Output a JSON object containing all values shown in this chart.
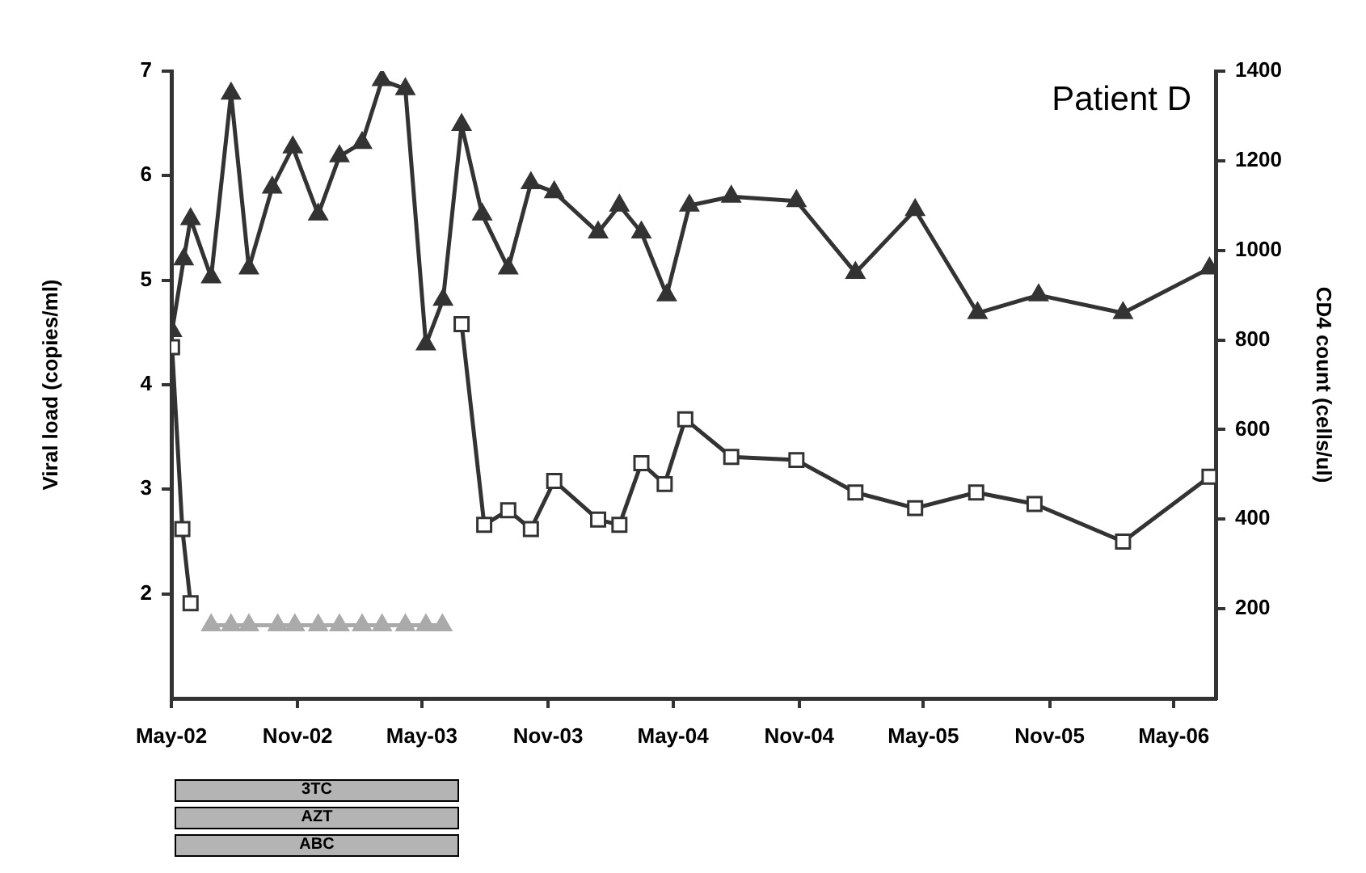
{
  "chart_data": {
    "type": "line",
    "title": "Patient D",
    "ylabel": "Viral load (copies/ml)",
    "y2label": "CD4 count (cells/ul)",
    "xlim": [
      "2002-05-01",
      "2006-07-01"
    ],
    "xticks": [
      {
        "value": "2002-05-01",
        "label": "May-02"
      },
      {
        "value": "2002-11-01",
        "label": "Nov-02"
      },
      {
        "value": "2003-05-01",
        "label": "May-03"
      },
      {
        "value": "2003-11-01",
        "label": "Nov-03"
      },
      {
        "value": "2004-05-01",
        "label": "May-04"
      },
      {
        "value": "2004-11-01",
        "label": "Nov-04"
      },
      {
        "value": "2005-05-01",
        "label": "May-05"
      },
      {
        "value": "2005-11-01",
        "label": "Nov-05"
      },
      {
        "value": "2006-05-01",
        "label": "May-06"
      }
    ],
    "ylim": [
      1,
      7
    ],
    "yticks": [
      2,
      3,
      4,
      5,
      6,
      7
    ],
    "y2lim": [
      0,
      1400
    ],
    "y2ticks": [
      200,
      400,
      600,
      800,
      1000,
      1200,
      1400
    ],
    "grid": false,
    "legend": false,
    "series": [
      {
        "color": "#333333",
        "marker": "triangle",
        "axis": "y2",
        "x": [
          "2002-05-02",
          "2002-05-19",
          "2002-05-29",
          "2002-06-28",
          "2002-07-27",
          "2002-08-22",
          "2002-09-25",
          "2002-10-25",
          "2002-12-01",
          "2003-01-01",
          "2003-02-03",
          "2003-03-04",
          "2003-04-07",
          "2003-05-07",
          "2003-06-01",
          "2003-06-28",
          "2003-07-28",
          "2003-09-04",
          "2003-10-07",
          "2003-11-10",
          "2004-01-13",
          "2004-02-13",
          "2004-03-16",
          "2004-04-22",
          "2004-05-25",
          "2004-07-25",
          "2004-10-28",
          "2005-01-22",
          "2005-04-19",
          "2005-07-19",
          "2005-10-16",
          "2006-02-16",
          "2006-06-22"
        ],
        "values": [
          820,
          980,
          1070,
          940,
          1350,
          960,
          1140,
          1230,
          1080,
          1210,
          1240,
          1380,
          1360,
          790,
          890,
          1280,
          1080,
          960,
          1150,
          1130,
          1040,
          1100,
          1040,
          900,
          1100,
          1120,
          1110,
          950,
          1090,
          860,
          900,
          860,
          960
        ]
      },
      {
        "color": "#333333",
        "marker": "square",
        "x": [
          "2002-05-02",
          "2002-05-17",
          "2002-05-29",
          "2002-06-28",
          "2002-07-27",
          "2002-08-22",
          "2002-10-03",
          "2002-10-28",
          "2002-12-01",
          "2003-01-01",
          "2003-02-03",
          "2003-03-04",
          "2003-04-07",
          "2003-05-07",
          "2003-05-31",
          "2003-06-28",
          "2003-07-31",
          "2003-09-04",
          "2003-10-07",
          "2003-11-10",
          "2004-01-13",
          "2004-02-13",
          "2004-03-16",
          "2004-04-19",
          "2004-05-19",
          "2004-07-25",
          "2004-10-28",
          "2005-01-22",
          "2005-04-19",
          "2005-07-17",
          "2005-10-10",
          "2006-02-16",
          "2006-06-22"
        ],
        "values": [
          4.36,
          2.62,
          1.91,
          null,
          null,
          null,
          null,
          null,
          null,
          null,
          null,
          null,
          null,
          null,
          null,
          4.58,
          2.66,
          2.8,
          2.62,
          3.08,
          2.71,
          2.66,
          3.25,
          3.05,
          3.67,
          3.31,
          3.28,
          2.97,
          2.82,
          2.97,
          2.86,
          2.5,
          3.12
        ]
      },
      {
        "color": "#aaaaaa",
        "marker": "triangle",
        "x": [
          "2002-06-28",
          "2002-07-27",
          "2002-08-22",
          "2002-10-03",
          "2002-10-28",
          "2002-12-01",
          "2003-01-01",
          "2003-02-03",
          "2003-03-04",
          "2003-04-07",
          "2003-05-07",
          "2003-05-31"
        ],
        "values": [
          1.7,
          1.7,
          1.7,
          1.7,
          1.7,
          1.7,
          1.7,
          1.7,
          1.7,
          1.7,
          1.7,
          1.7
        ]
      }
    ],
    "annotations": [
      "3TC",
      "AZT",
      "ABC"
    ]
  }
}
